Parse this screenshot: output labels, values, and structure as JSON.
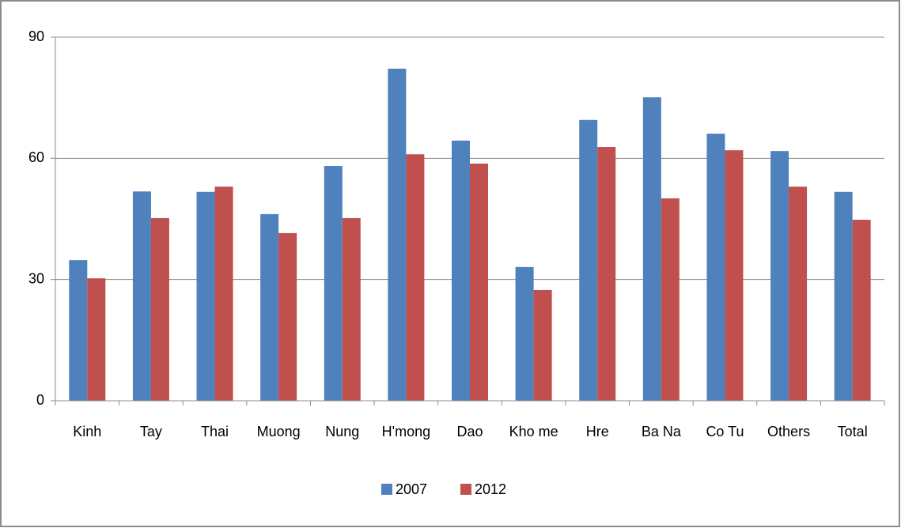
{
  "chart_data": {
    "type": "bar",
    "categories": [
      "Kinh",
      "Tay",
      "Thai",
      "Muong",
      "Nung",
      "H'mong",
      "Dao",
      "Kho me",
      "Hre",
      "Ba Na",
      "Co Tu",
      "Others",
      "Total"
    ],
    "series": [
      {
        "name": "2007",
        "color": "#4f81bd",
        "values": [
          34.8,
          51.8,
          51.7,
          46.2,
          58.1,
          82.2,
          64.4,
          33.1,
          69.5,
          75.1,
          66.1,
          61.8,
          51.7
        ]
      },
      {
        "name": "2012",
        "color": "#c0504d",
        "values": [
          30.3,
          45.2,
          53.0,
          41.5,
          45.2,
          61.0,
          58.7,
          27.4,
          62.8,
          50.1,
          62.0,
          53.0,
          44.8
        ]
      }
    ],
    "ylim": [
      0,
      90
    ],
    "yticks": [
      0,
      30,
      60,
      90
    ],
    "grid": true,
    "legend": "bottom"
  }
}
